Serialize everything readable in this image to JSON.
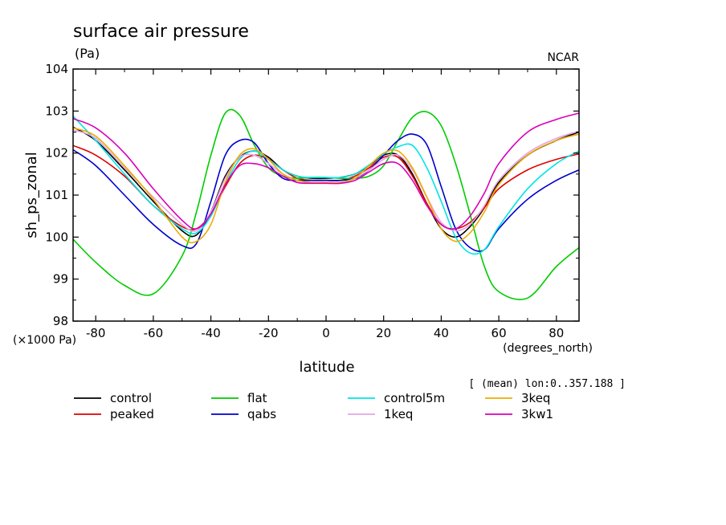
{
  "header": {
    "title": "surface air pressure",
    "unit": "(Pa)",
    "source": "NCAR",
    "note": "[ (mean) lon:0..357.188 ]"
  },
  "chart_data": {
    "type": "line",
    "xlabel": "latitude",
    "x_unit": "(degrees_north)",
    "ylabel": "sh_ps_zonal",
    "y_unit": "(×1000 Pa)",
    "xlim": [
      -87.8638,
      87.8638
    ],
    "ylim": [
      98,
      104
    ],
    "xticks": [
      -80,
      -60,
      -40,
      -20,
      0,
      20,
      40,
      60,
      80
    ],
    "xtick_labels": [
      "-80",
      "-60",
      "-40",
      "-20",
      "0",
      "20",
      "40",
      "60",
      "80"
    ],
    "yticks": [
      98,
      99,
      100,
      101,
      102,
      103,
      104
    ],
    "ytick_labels": [
      "98",
      "99",
      "100",
      "101",
      "102",
      "103",
      "104"
    ],
    "grid": false,
    "legend_position": "bottom",
    "x": [
      -87.9,
      -80,
      -70,
      -60,
      -50,
      -45,
      -40,
      -35,
      -30,
      -25,
      -20,
      -15,
      -10,
      -5,
      0,
      5,
      10,
      15,
      20,
      25,
      30,
      35,
      40,
      45,
      50,
      55,
      60,
      70,
      80,
      87.9
    ],
    "series": [
      {
        "name": "control",
        "color": "#000000",
        "values": [
          102.62,
          102.3,
          101.6,
          100.85,
          100.15,
          100.05,
          100.6,
          101.45,
          101.9,
          102.05,
          101.9,
          101.6,
          101.45,
          101.4,
          101.4,
          101.42,
          101.5,
          101.7,
          101.95,
          101.95,
          101.5,
          100.8,
          100.2,
          100.0,
          100.25,
          100.7,
          101.3,
          101.95,
          102.3,
          102.5
        ]
      },
      {
        "name": "peaked",
        "color": "#e00000",
        "values": [
          102.18,
          101.95,
          101.45,
          100.75,
          100.25,
          100.2,
          100.55,
          101.2,
          101.75,
          101.95,
          101.85,
          101.6,
          101.4,
          101.35,
          101.35,
          101.35,
          101.45,
          101.65,
          101.9,
          101.9,
          101.45,
          100.8,
          100.3,
          100.2,
          100.35,
          100.7,
          101.15,
          101.6,
          101.85,
          101.98
        ]
      },
      {
        "name": "flat",
        "color": "#00cc00",
        "values": [
          99.95,
          99.4,
          98.85,
          98.65,
          99.55,
          100.6,
          101.95,
          102.95,
          102.9,
          102.2,
          101.65,
          101.45,
          101.4,
          101.42,
          101.42,
          101.4,
          101.4,
          101.45,
          101.7,
          102.3,
          102.85,
          102.98,
          102.65,
          101.75,
          100.55,
          99.3,
          98.7,
          98.55,
          99.3,
          99.75
        ]
      },
      {
        "name": "qabs",
        "color": "#0000cc",
        "values": [
          102.08,
          101.7,
          101.0,
          100.3,
          99.8,
          99.85,
          100.85,
          101.95,
          102.3,
          102.25,
          101.75,
          101.4,
          101.35,
          101.35,
          101.35,
          101.35,
          101.4,
          101.6,
          101.95,
          102.3,
          102.45,
          102.2,
          101.2,
          100.2,
          99.75,
          99.7,
          100.2,
          100.9,
          101.35,
          101.6
        ]
      },
      {
        "name": "control5m",
        "color": "#00e5e5",
        "values": [
          102.88,
          102.3,
          101.5,
          100.75,
          100.2,
          100.1,
          100.5,
          101.25,
          101.85,
          102.05,
          101.85,
          101.6,
          101.45,
          101.42,
          101.42,
          101.42,
          101.5,
          101.72,
          101.98,
          102.15,
          102.18,
          101.65,
          100.85,
          100.0,
          99.62,
          99.7,
          100.25,
          101.15,
          101.75,
          102.05
        ]
      },
      {
        "name": "1keq",
        "color": "#e4a4e4",
        "values": [
          102.55,
          102.35,
          101.65,
          100.95,
          100.3,
          100.15,
          100.6,
          101.4,
          101.9,
          101.95,
          101.75,
          101.5,
          101.35,
          101.3,
          101.3,
          101.3,
          101.4,
          101.6,
          101.85,
          101.95,
          101.6,
          100.95,
          100.35,
          100.15,
          100.3,
          100.75,
          101.35,
          102.0,
          102.35,
          102.52
        ]
      },
      {
        "name": "3keq",
        "color": "#ecac00",
        "values": [
          102.6,
          102.4,
          101.7,
          100.9,
          100.0,
          99.9,
          100.3,
          101.3,
          101.95,
          102.1,
          101.85,
          101.5,
          101.35,
          101.3,
          101.3,
          101.3,
          101.4,
          101.7,
          102.0,
          102.05,
          101.65,
          100.95,
          100.2,
          99.9,
          100.1,
          100.6,
          101.25,
          101.95,
          102.3,
          102.45
        ]
      },
      {
        "name": "3kw1",
        "color": "#d800b8",
        "values": [
          102.82,
          102.6,
          102.0,
          101.15,
          100.4,
          100.2,
          100.55,
          101.25,
          101.7,
          101.75,
          101.65,
          101.45,
          101.3,
          101.28,
          101.28,
          101.28,
          101.35,
          101.55,
          101.75,
          101.75,
          101.35,
          100.75,
          100.3,
          100.2,
          100.5,
          101.05,
          101.75,
          102.5,
          102.8,
          102.95
        ]
      }
    ]
  }
}
